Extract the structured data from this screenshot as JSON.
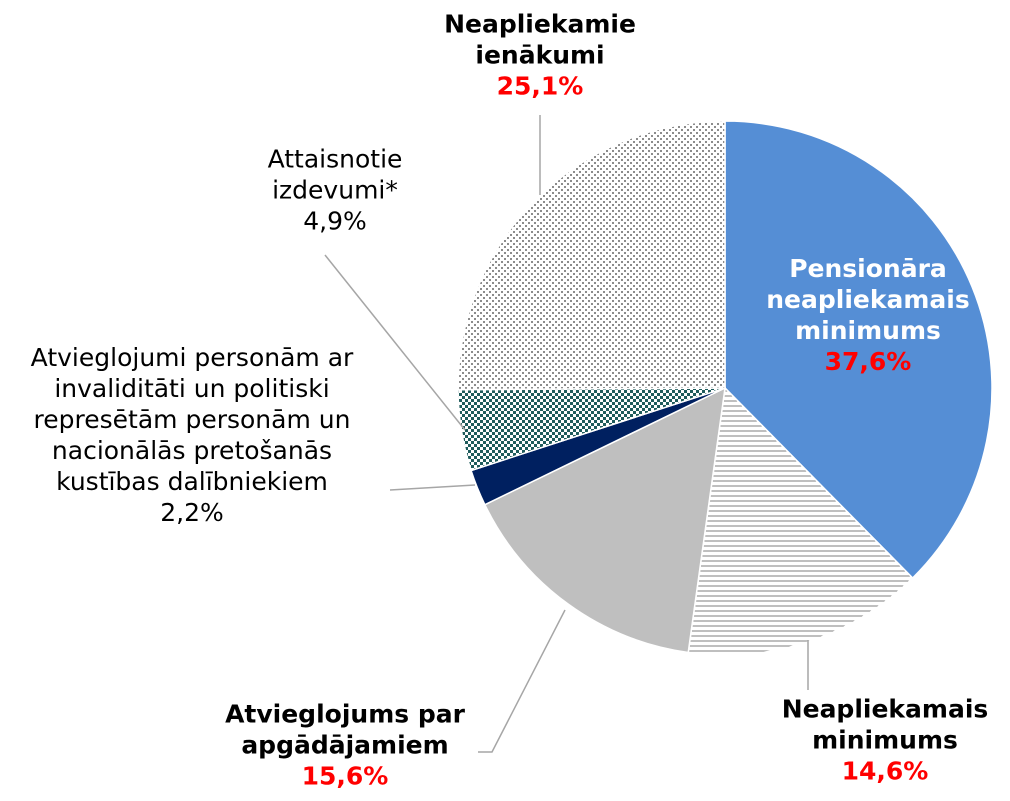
{
  "chart_data": {
    "type": "pie",
    "categories": [
      "Pensionāra neapliekamais minimums",
      "Neapliekamais minimums",
      "Atvieglojums par apgādājamiem",
      "Atvieglojumi personām ar invaliditāti un politiski represētām personām un nacionālās pretošanās kustības dalībniekiem",
      "Attaisnotie izdevumi*",
      "Neapliekamie ienākumi"
    ],
    "values": [
      37.6,
      14.6,
      15.6,
      2.2,
      4.9,
      25.1
    ],
    "value_labels": [
      "37,6%",
      "14,6%",
      "15,6%",
      "2,2%",
      "4,9%",
      "25,1%"
    ],
    "colors": [
      "#558ed5",
      "#7f7f7f",
      "#bfbfbf",
      "#002060",
      "#1f5c5c",
      "#8c8c8c"
    ],
    "patterns": [
      null,
      "horizontal-lines",
      null,
      null,
      "checker",
      "dots"
    ]
  }
}
